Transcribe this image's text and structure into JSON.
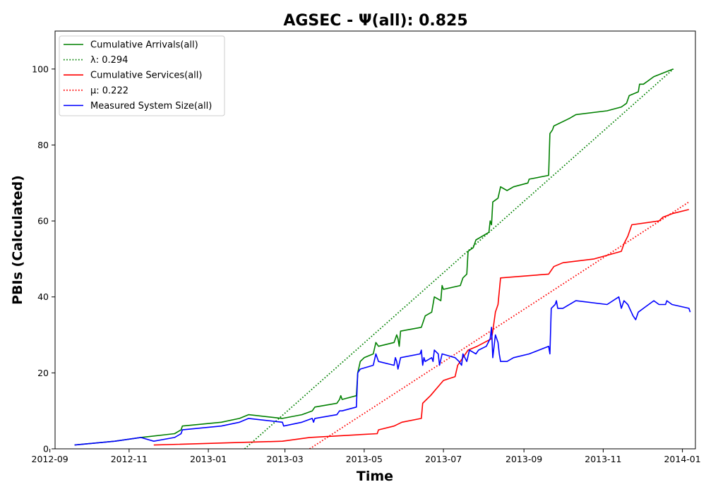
{
  "chart_data": {
    "type": "line",
    "title": "AGSEC -  Ψ(all): 0.825",
    "xlabel": "Time",
    "ylabel": "PBIs (Calculated)",
    "xlim": [
      "2012-09-05",
      "2014-01-11"
    ],
    "ylim": [
      0,
      110
    ],
    "x_ticks": [
      "2012-09",
      "2012-11",
      "2013-01",
      "2013-03",
      "2013-05",
      "2013-07",
      "2013-09",
      "2013-11",
      "2014-01"
    ],
    "y_ticks": [
      0,
      20,
      40,
      60,
      80,
      100
    ],
    "grid": false,
    "legend_position": "upper-left",
    "series": [
      {
        "name": "Cumulative Arrivals(all)",
        "style": "solid",
        "color": "#008000",
        "points": [
          [
            "2012-09-20",
            1
          ],
          [
            "2012-10-21",
            2
          ],
          [
            "2012-11-10",
            3
          ],
          [
            "2012-12-06",
            4
          ],
          [
            "2012-12-11",
            5
          ],
          [
            "2012-12-12",
            6
          ],
          [
            "2013-01-11",
            7
          ],
          [
            "2013-01-25",
            8
          ],
          [
            "2013-02-01",
            9
          ],
          [
            "2013-02-27",
            8
          ],
          [
            "2013-03-14",
            9
          ],
          [
            "2013-03-22",
            10
          ],
          [
            "2013-03-24",
            11
          ],
          [
            "2013-04-10",
            12
          ],
          [
            "2013-04-12",
            13
          ],
          [
            "2013-04-13",
            14
          ],
          [
            "2013-04-14",
            13
          ],
          [
            "2013-04-25",
            14
          ],
          [
            "2013-04-26",
            20
          ],
          [
            "2013-04-28",
            23
          ],
          [
            "2013-05-01",
            24
          ],
          [
            "2013-05-08",
            25
          ],
          [
            "2013-05-10",
            28
          ],
          [
            "2013-05-12",
            27
          ],
          [
            "2013-05-24",
            28
          ],
          [
            "2013-05-26",
            30
          ],
          [
            "2013-05-27",
            29
          ],
          [
            "2013-05-28",
            27
          ],
          [
            "2013-05-29",
            31
          ],
          [
            "2013-06-14",
            32
          ],
          [
            "2013-06-17",
            35
          ],
          [
            "2013-06-22",
            36
          ],
          [
            "2013-06-24",
            40
          ],
          [
            "2013-06-29",
            39
          ],
          [
            "2013-06-30",
            43
          ],
          [
            "2013-07-01",
            42
          ],
          [
            "2013-07-14",
            43
          ],
          [
            "2013-07-16",
            45
          ],
          [
            "2013-07-19",
            46
          ],
          [
            "2013-07-20",
            52
          ],
          [
            "2013-07-24",
            53
          ],
          [
            "2013-07-26",
            55
          ],
          [
            "2013-08-05",
            57
          ],
          [
            "2013-08-06",
            60
          ],
          [
            "2013-08-07",
            59
          ],
          [
            "2013-08-08",
            65
          ],
          [
            "2013-08-12",
            66
          ],
          [
            "2013-08-14",
            69
          ],
          [
            "2013-08-19",
            68
          ],
          [
            "2013-08-24",
            69
          ],
          [
            "2013-09-04",
            70
          ],
          [
            "2013-09-05",
            71
          ],
          [
            "2013-09-20",
            72
          ],
          [
            "2013-09-21",
            83
          ],
          [
            "2013-09-23",
            84
          ],
          [
            "2013-09-24",
            85
          ],
          [
            "2013-10-06",
            87
          ],
          [
            "2013-10-11",
            88
          ],
          [
            "2013-11-04",
            89
          ],
          [
            "2013-11-15",
            90
          ],
          [
            "2013-11-19",
            91
          ],
          [
            "2013-11-21",
            93
          ],
          [
            "2013-11-28",
            94
          ],
          [
            "2013-11-29",
            96
          ],
          [
            "2013-12-02",
            96
          ],
          [
            "2013-12-10",
            98
          ],
          [
            "2013-12-25",
            100
          ]
        ]
      },
      {
        "name": "λ: 0.294",
        "style": "dotted",
        "color": "#008000",
        "points": [
          [
            "2013-01-29",
            0
          ],
          [
            "2013-12-25",
            100
          ]
        ]
      },
      {
        "name": "Cumulative Services(all)",
        "style": "solid",
        "color": "#ff0000",
        "points": [
          [
            "2012-11-20",
            1
          ],
          [
            "2013-02-27",
            2
          ],
          [
            "2013-03-20",
            3
          ],
          [
            "2013-05-11",
            4
          ],
          [
            "2013-05-12",
            5
          ],
          [
            "2013-05-24",
            6
          ],
          [
            "2013-05-30",
            7
          ],
          [
            "2013-06-14",
            8
          ],
          [
            "2013-06-15",
            12
          ],
          [
            "2013-06-18",
            13
          ],
          [
            "2013-06-21",
            14
          ],
          [
            "2013-06-26",
            16
          ],
          [
            "2013-07-01",
            18
          ],
          [
            "2013-07-10",
            19
          ],
          [
            "2013-07-12",
            22
          ],
          [
            "2013-07-20",
            26
          ],
          [
            "2013-07-27",
            27
          ],
          [
            "2013-08-07",
            29
          ],
          [
            "2013-08-08",
            31
          ],
          [
            "2013-08-10",
            36
          ],
          [
            "2013-08-12",
            38
          ],
          [
            "2013-08-14",
            45
          ],
          [
            "2013-09-20",
            46
          ],
          [
            "2013-09-24",
            48
          ],
          [
            "2013-10-01",
            49
          ],
          [
            "2013-10-25",
            50
          ],
          [
            "2013-11-15",
            52
          ],
          [
            "2013-11-17",
            54
          ],
          [
            "2013-11-20",
            56
          ],
          [
            "2013-11-23",
            59
          ],
          [
            "2013-12-14",
            60
          ],
          [
            "2013-12-17",
            61
          ],
          [
            "2013-12-25",
            62
          ],
          [
            "2014-01-06",
            63
          ]
        ]
      },
      {
        "name": "μ: 0.222",
        "style": "dotted",
        "color": "#ff0000",
        "points": [
          [
            "2013-03-20",
            0
          ],
          [
            "2014-01-06",
            65
          ]
        ]
      },
      {
        "name": "Measured System Size(all)",
        "style": "solid",
        "color": "#0000ff",
        "points": [
          [
            "2012-09-20",
            1
          ],
          [
            "2012-10-21",
            2
          ],
          [
            "2012-11-10",
            3
          ],
          [
            "2012-11-20",
            2
          ],
          [
            "2012-12-06",
            3
          ],
          [
            "2012-12-11",
            4
          ],
          [
            "2012-12-12",
            5
          ],
          [
            "2013-01-11",
            6
          ],
          [
            "2013-01-25",
            7
          ],
          [
            "2013-02-01",
            8
          ],
          [
            "2013-02-27",
            7
          ],
          [
            "2013-02-28",
            6
          ],
          [
            "2013-03-14",
            7
          ],
          [
            "2013-03-22",
            8
          ],
          [
            "2013-03-23",
            7
          ],
          [
            "2013-03-24",
            8
          ],
          [
            "2013-04-10",
            9
          ],
          [
            "2013-04-12",
            10
          ],
          [
            "2013-04-14",
            10
          ],
          [
            "2013-04-25",
            11
          ],
          [
            "2013-04-26",
            20
          ],
          [
            "2013-04-28",
            21
          ],
          [
            "2013-05-08",
            22
          ],
          [
            "2013-05-10",
            25
          ],
          [
            "2013-05-12",
            23
          ],
          [
            "2013-05-24",
            22
          ],
          [
            "2013-05-25",
            24
          ],
          [
            "2013-05-26",
            23
          ],
          [
            "2013-05-27",
            21
          ],
          [
            "2013-05-29",
            24
          ],
          [
            "2013-06-13",
            25
          ],
          [
            "2013-06-14",
            26
          ],
          [
            "2013-06-15",
            22
          ],
          [
            "2013-06-16",
            24
          ],
          [
            "2013-06-17",
            23
          ],
          [
            "2013-06-22",
            24
          ],
          [
            "2013-06-23",
            23
          ],
          [
            "2013-06-24",
            26
          ],
          [
            "2013-06-27",
            25
          ],
          [
            "2013-06-28",
            22
          ],
          [
            "2013-06-30",
            25
          ],
          [
            "2013-07-10",
            24
          ],
          [
            "2013-07-13",
            23
          ],
          [
            "2013-07-15",
            22
          ],
          [
            "2013-07-16",
            25
          ],
          [
            "2013-07-19",
            23
          ],
          [
            "2013-07-21",
            26
          ],
          [
            "2013-07-26",
            25
          ],
          [
            "2013-07-28",
            26
          ],
          [
            "2013-08-03",
            27
          ],
          [
            "2013-08-06",
            29
          ],
          [
            "2013-08-07",
            32
          ],
          [
            "2013-08-08",
            24
          ],
          [
            "2013-08-10",
            30
          ],
          [
            "2013-08-12",
            28
          ],
          [
            "2013-08-13",
            25
          ],
          [
            "2013-08-14",
            23
          ],
          [
            "2013-08-19",
            23
          ],
          [
            "2013-08-24",
            24
          ],
          [
            "2013-09-05",
            25
          ],
          [
            "2013-09-20",
            27
          ],
          [
            "2013-09-21",
            25
          ],
          [
            "2013-09-22",
            37
          ],
          [
            "2013-09-25",
            38
          ],
          [
            "2013-09-26",
            39
          ],
          [
            "2013-09-27",
            37
          ],
          [
            "2013-10-01",
            37
          ],
          [
            "2013-10-11",
            39
          ],
          [
            "2013-11-04",
            38
          ],
          [
            "2013-11-13",
            40
          ],
          [
            "2013-11-15",
            37
          ],
          [
            "2013-11-17",
            39
          ],
          [
            "2013-11-20",
            38
          ],
          [
            "2013-11-24",
            35
          ],
          [
            "2013-11-26",
            34
          ],
          [
            "2013-11-28",
            36
          ],
          [
            "2013-12-02",
            37
          ],
          [
            "2013-12-10",
            39
          ],
          [
            "2013-12-14",
            38
          ],
          [
            "2013-12-19",
            38
          ],
          [
            "2013-12-20",
            39
          ],
          [
            "2013-12-24",
            38
          ],
          [
            "2014-01-06",
            37
          ],
          [
            "2014-01-07",
            36
          ]
        ]
      }
    ]
  }
}
